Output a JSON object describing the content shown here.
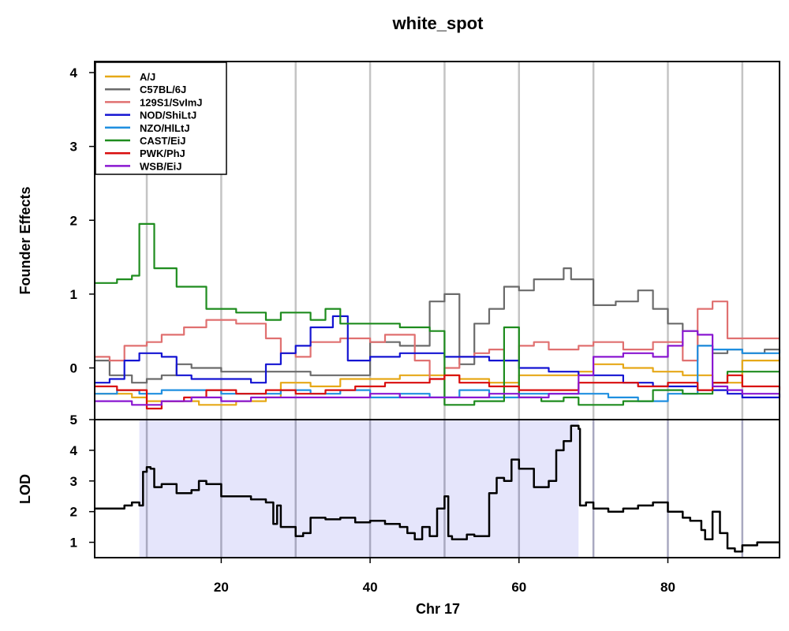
{
  "chart_data": {
    "type": "line",
    "title": "white_spot",
    "xlabel": "Chr 17",
    "xlim": [
      3,
      95
    ],
    "x_ticks": [
      20,
      40,
      60,
      80
    ],
    "grid_x": [
      10,
      20,
      30,
      40,
      50,
      60,
      70,
      80,
      90
    ],
    "legend_position": "top-left",
    "top_panel": {
      "ylabel": "Founder Effects",
      "ylim": [
        -0.7,
        4.15
      ],
      "y_ticks": [
        0,
        1,
        2,
        3,
        4
      ],
      "series": [
        {
          "name": "A/J",
          "color": "#e6a817",
          "x": [
            3,
            8,
            10,
            13,
            17,
            22,
            26,
            28,
            32,
            36,
            40,
            44,
            48,
            52,
            56,
            60,
            64,
            68,
            70,
            74,
            78,
            82,
            86,
            90,
            95
          ],
          "y": [
            -0.35,
            -0.4,
            -0.45,
            -0.45,
            -0.5,
            -0.45,
            -0.4,
            -0.2,
            -0.25,
            -0.15,
            -0.15,
            -0.1,
            -0.1,
            -0.15,
            -0.2,
            -0.1,
            -0.1,
            -0.05,
            0.05,
            0.0,
            -0.05,
            -0.1,
            -0.2,
            0.1,
            0.15
          ]
        },
        {
          "name": "C57BL/6J",
          "color": "#6b6b6b",
          "x": [
            3,
            5,
            8,
            10,
            12,
            14,
            16,
            20,
            24,
            28,
            32,
            36,
            40,
            44,
            47,
            48,
            50,
            52,
            54,
            56,
            58,
            60,
            62,
            66,
            67,
            70,
            73,
            76,
            78,
            80,
            82,
            84,
            86,
            88,
            90,
            93,
            95
          ],
          "y": [
            0.1,
            -0.1,
            -0.2,
            -0.15,
            -0.1,
            0.05,
            0.0,
            -0.05,
            -0.05,
            -0.05,
            -0.1,
            -0.1,
            0.35,
            0.3,
            0.3,
            0.9,
            1.0,
            0.05,
            0.6,
            0.8,
            1.1,
            1.05,
            1.2,
            1.35,
            1.2,
            0.85,
            0.9,
            1.05,
            0.8,
            0.6,
            0.5,
            0.3,
            0.2,
            0.25,
            0.2,
            0.25,
            0.25
          ]
        },
        {
          "name": "129S1/SvImJ",
          "color": "#e07070",
          "x": [
            3,
            5,
            7,
            10,
            12,
            15,
            18,
            22,
            26,
            28,
            30,
            32,
            36,
            40,
            42,
            46,
            48,
            50,
            52,
            54,
            56,
            58,
            60,
            62,
            64,
            68,
            70,
            74,
            78,
            82,
            84,
            86,
            88,
            90,
            93,
            95
          ],
          "y": [
            0.15,
            0.1,
            0.3,
            0.35,
            0.45,
            0.55,
            0.65,
            0.6,
            0.4,
            0.2,
            0.15,
            0.35,
            0.4,
            0.35,
            0.45,
            0.1,
            -0.15,
            0.0,
            0.15,
            0.2,
            0.25,
            0.1,
            0.3,
            0.35,
            0.25,
            0.3,
            0.35,
            0.25,
            0.35,
            0.1,
            0.8,
            0.9,
            0.4,
            0.4,
            0.4,
            0.4
          ]
        },
        {
          "name": "NOD/ShiLtJ",
          "color": "#1414d2",
          "x": [
            3,
            5,
            7,
            9,
            12,
            14,
            16,
            18,
            20,
            24,
            26,
            28,
            30,
            32,
            35,
            37,
            40,
            44,
            48,
            50,
            52,
            54,
            56,
            60,
            64,
            68,
            70,
            74,
            78,
            82,
            84,
            86,
            88,
            90,
            95
          ],
          "y": [
            -0.2,
            -0.15,
            0.1,
            0.2,
            0.15,
            -0.1,
            -0.15,
            -0.15,
            -0.15,
            -0.2,
            0.05,
            0.2,
            0.3,
            0.55,
            0.7,
            0.1,
            0.15,
            0.2,
            0.2,
            0.15,
            0.15,
            0.15,
            0.1,
            0.0,
            -0.05,
            -0.1,
            -0.1,
            -0.2,
            -0.25,
            -0.25,
            -0.3,
            -0.3,
            -0.35,
            -0.4,
            -0.35
          ]
        },
        {
          "name": "NZO/HlLtJ",
          "color": "#1f8fe0",
          "x": [
            3,
            6,
            9,
            12,
            16,
            20,
            24,
            28,
            32,
            36,
            40,
            44,
            48,
            52,
            56,
            60,
            64,
            68,
            72,
            76,
            80,
            84,
            86,
            88,
            90,
            95
          ],
          "y": [
            -0.35,
            -0.3,
            -0.35,
            -0.3,
            -0.3,
            -0.35,
            -0.35,
            -0.3,
            -0.35,
            -0.3,
            -0.4,
            -0.35,
            -0.4,
            -0.3,
            -0.4,
            -0.35,
            -0.35,
            -0.35,
            -0.4,
            -0.45,
            -0.35,
            0.3,
            0.25,
            0.25,
            0.2,
            0.25
          ]
        },
        {
          "name": "CAST/EiJ",
          "color": "#1e8c1e",
          "x": [
            3,
            6,
            8,
            9,
            10,
            11,
            14,
            18,
            22,
            26,
            28,
            30,
            32,
            34,
            36,
            40,
            44,
            48,
            50,
            52,
            54,
            56,
            58,
            60,
            63,
            66,
            68,
            70,
            74,
            78,
            82,
            86,
            88,
            90,
            95
          ],
          "y": [
            1.15,
            1.2,
            1.25,
            1.95,
            1.95,
            1.35,
            1.1,
            0.8,
            0.75,
            0.65,
            0.75,
            0.75,
            0.65,
            0.8,
            0.6,
            0.6,
            0.55,
            0.5,
            -0.5,
            -0.5,
            -0.45,
            -0.45,
            0.55,
            -0.4,
            -0.45,
            -0.4,
            -0.5,
            -0.5,
            -0.45,
            -0.3,
            -0.35,
            -0.2,
            -0.05,
            -0.05,
            -0.05
          ]
        },
        {
          "name": "PWK/PhJ",
          "color": "#d90d0d",
          "x": [
            3,
            6,
            8,
            10,
            12,
            15,
            18,
            22,
            26,
            30,
            34,
            38,
            42,
            46,
            48,
            50,
            52,
            56,
            60,
            64,
            68,
            72,
            76,
            80,
            84,
            86,
            88,
            90,
            95
          ],
          "y": [
            -0.25,
            -0.3,
            -0.3,
            -0.55,
            -0.45,
            -0.4,
            -0.3,
            -0.35,
            -0.3,
            -0.35,
            -0.3,
            -0.25,
            -0.2,
            -0.2,
            -0.15,
            -0.1,
            -0.2,
            -0.25,
            -0.3,
            -0.3,
            -0.2,
            -0.2,
            -0.25,
            -0.2,
            -0.3,
            -0.2,
            -0.1,
            -0.25,
            -0.3
          ]
        },
        {
          "name": "WSB/EiJ",
          "color": "#8a17d1",
          "x": [
            3,
            6,
            8,
            10,
            12,
            16,
            20,
            24,
            28,
            32,
            36,
            40,
            44,
            48,
            52,
            56,
            60,
            64,
            68,
            70,
            74,
            78,
            80,
            82,
            84,
            86,
            88,
            90,
            95
          ],
          "y": [
            -0.45,
            -0.45,
            -0.5,
            -0.5,
            -0.45,
            -0.4,
            -0.45,
            -0.4,
            -0.4,
            -0.4,
            -0.4,
            -0.35,
            -0.4,
            -0.4,
            -0.4,
            -0.35,
            -0.4,
            -0.35,
            -0.1,
            0.15,
            0.2,
            0.15,
            0.3,
            0.5,
            0.45,
            -0.25,
            -0.3,
            -0.35,
            -0.35
          ]
        }
      ]
    },
    "bottom_panel": {
      "ylabel": "LOD",
      "ylim": [
        0.5,
        5.0
      ],
      "y_ticks": [
        1,
        2,
        3,
        4,
        5
      ],
      "highlight_range": [
        9,
        68
      ],
      "highlight_color": "#e5e5fb",
      "series": [
        {
          "name": "LOD",
          "color": "#000000",
          "x": [
            3,
            5,
            7,
            8,
            9,
            9.5,
            10,
            10.5,
            11,
            12,
            14,
            16,
            17,
            18,
            20,
            24,
            26,
            27,
            27.5,
            28,
            30,
            31,
            32,
            34,
            36,
            38,
            40,
            42,
            44,
            45,
            46,
            47,
            48,
            49,
            50,
            50.5,
            51,
            52,
            53,
            54,
            56,
            57,
            58,
            59,
            60,
            62,
            63,
            64,
            65,
            66,
            67,
            68,
            68.2,
            69,
            70,
            72,
            74,
            76,
            78,
            80,
            82,
            83,
            84,
            84.5,
            85,
            86,
            87,
            88,
            89,
            90,
            92,
            95
          ],
          "y": [
            2.1,
            2.1,
            2.2,
            2.3,
            2.2,
            3.3,
            3.45,
            3.4,
            2.8,
            2.9,
            2.6,
            2.7,
            3.0,
            2.9,
            2.5,
            2.4,
            2.3,
            1.6,
            2.2,
            1.5,
            1.2,
            1.3,
            1.8,
            1.75,
            1.8,
            1.65,
            1.7,
            1.6,
            1.5,
            1.3,
            1.1,
            1.5,
            1.2,
            2.1,
            2.5,
            1.2,
            1.1,
            1.1,
            1.25,
            1.2,
            2.6,
            3.1,
            3.0,
            3.7,
            3.4,
            2.8,
            2.8,
            3.0,
            4.0,
            4.3,
            4.8,
            4.7,
            2.2,
            2.3,
            2.1,
            2.0,
            2.1,
            2.2,
            2.3,
            2.0,
            1.8,
            1.7,
            1.7,
            1.4,
            1.1,
            2.0,
            1.3,
            0.8,
            0.7,
            0.9,
            1.0,
            1.0
          ]
        }
      ]
    }
  }
}
